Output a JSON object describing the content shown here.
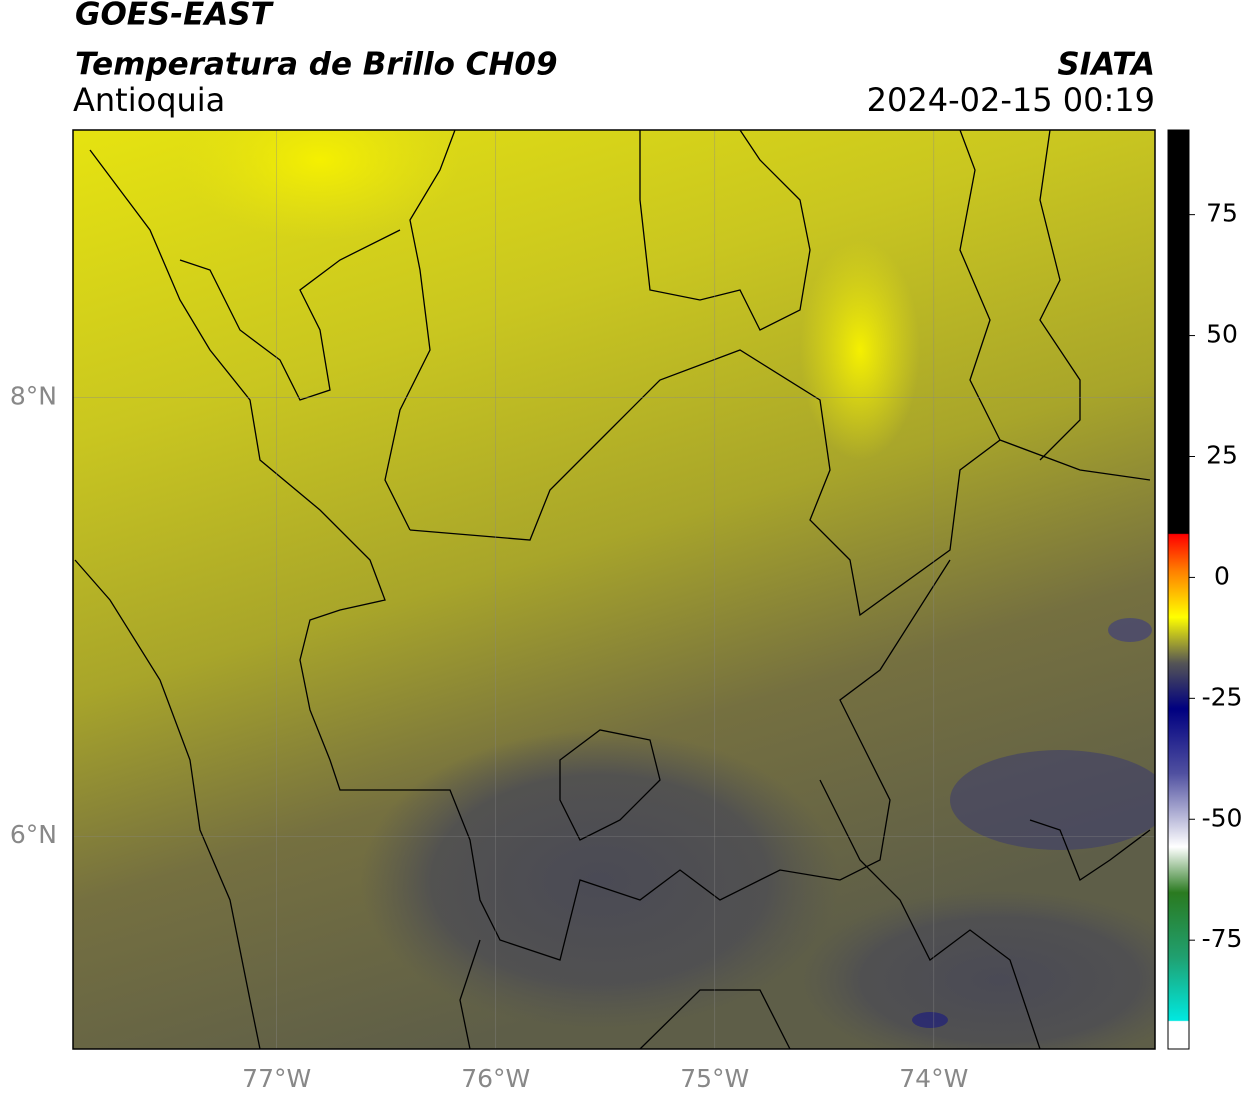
{
  "header": {
    "title": "GOES-EAST",
    "subtitle": "Temperatura de Brillo CH09",
    "region": "Antioquia",
    "source": "SIATA",
    "datetime": "2024-02-15 00:19"
  },
  "map": {
    "lon_range": [
      -77.93,
      -72.99
    ],
    "lat_range": [
      5.03,
      9.22
    ],
    "lon_ticks": [
      {
        "value": -77,
        "label": "77°W"
      },
      {
        "value": -76,
        "label": "76°W"
      },
      {
        "value": -75,
        "label": "75°W"
      },
      {
        "value": -74,
        "label": "74°W"
      }
    ],
    "lat_ticks": [
      {
        "value": 8,
        "label": "8°N"
      },
      {
        "value": 6,
        "label": "6°N"
      }
    ]
  },
  "colorbar": {
    "range": [
      -97.5,
      92.5
    ],
    "ticks": [
      75,
      50,
      25,
      0,
      -25,
      -50,
      -75
    ]
  }
}
